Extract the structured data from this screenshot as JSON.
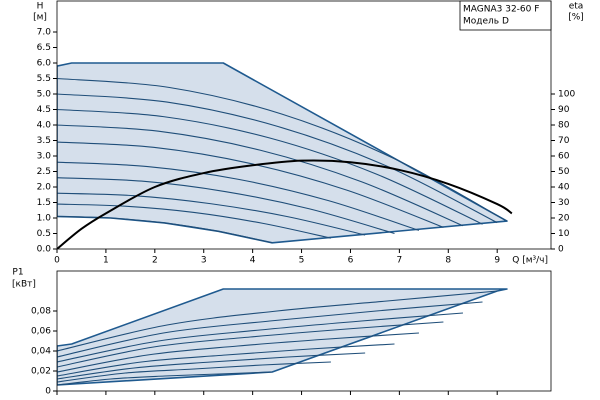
{
  "chart_data": [
    {
      "type": "line",
      "title": "MAGNA3 32-60 F",
      "subtitle": "Модель D",
      "ylabel": "H",
      "yunit": "[м]",
      "y2label": "eta",
      "y2unit": "[%]",
      "xlabel": "Q [м³/ч]",
      "xlim": [
        0,
        10.1
      ],
      "xticks": [
        0,
        1,
        2,
        3,
        4,
        5,
        6,
        7,
        8,
        9
      ],
      "ylim": [
        0,
        8
      ],
      "yticks": [
        {
          "value": 0,
          "label": "0.0"
        },
        0.5,
        {
          "value": 1,
          "label": "1.0"
        },
        1.5,
        {
          "value": 2,
          "label": "2.0"
        },
        2.5,
        {
          "value": 3,
          "label": "3.0"
        },
        3.5,
        {
          "value": 4,
          "label": "4.0"
        },
        4.5,
        {
          "value": 5,
          "label": "5.0"
        },
        5.5,
        {
          "value": 6,
          "label": "6.0"
        },
        6.5,
        {
          "value": 7,
          "label": "7.0"
        }
      ],
      "y2lim": [
        0,
        160
      ],
      "y2ticks": [
        0,
        10,
        20,
        30,
        40,
        50,
        60,
        70,
        80,
        90,
        100
      ],
      "area": {
        "color": "#d5dfeb",
        "edge": "#1f5a8f",
        "x": [
          0,
          0.3,
          3.4,
          9.2,
          4.4,
          3.3,
          2.2,
          1.1,
          0
        ],
        "values": [
          5.9,
          6.0,
          6.0,
          0.9,
          0.2,
          0.57,
          0.84,
          1.0,
          1.05
        ]
      },
      "series": [
        {
          "color": "#1f4e79",
          "x": [
            0,
            2.3,
            4.6,
            6.9,
            9.2
          ],
          "values": [
            5.5,
            5.21,
            4.35,
            2.91,
            0.9
          ]
        },
        {
          "color": "#1f4e79",
          "x": [
            0,
            2.25,
            4.5,
            6.75,
            9.0
          ],
          "values": [
            5.0,
            4.74,
            3.96,
            2.67,
            0.85
          ]
        },
        {
          "color": "#1f4e79",
          "x": [
            0,
            2.175,
            4.35,
            6.525,
            8.7
          ],
          "values": [
            4.5,
            4.27,
            3.58,
            2.42,
            0.8
          ]
        },
        {
          "color": "#1f4e79",
          "x": [
            0,
            2.075,
            4.15,
            6.225,
            8.3
          ],
          "values": [
            4.0,
            3.8,
            3.19,
            2.17,
            0.75
          ]
        },
        {
          "color": "#1f4e79",
          "x": [
            0,
            1.975,
            3.95,
            5.925,
            7.9
          ],
          "values": [
            3.45,
            3.28,
            2.76,
            1.9,
            0.7
          ]
        },
        {
          "color": "#1f4e79",
          "x": [
            0,
            1.85,
            3.7,
            5.55,
            7.4
          ],
          "values": [
            2.8,
            2.66,
            2.25,
            1.56,
            0.6
          ]
        },
        {
          "color": "#1f4e79",
          "x": [
            0,
            1.725,
            3.45,
            5.175,
            6.9
          ],
          "values": [
            2.3,
            2.19,
            1.85,
            1.29,
            0.5
          ]
        },
        {
          "color": "#1f4e79",
          "x": [
            0,
            1.575,
            3.15,
            4.725,
            6.3
          ],
          "values": [
            1.8,
            1.72,
            1.46,
            1.04,
            0.45
          ]
        },
        {
          "color": "#1f4e79",
          "x": [
            0,
            1.4,
            2.8,
            4.2,
            5.6
          ],
          "values": [
            1.45,
            1.38,
            1.18,
            0.83,
            0.35
          ]
        },
        {
          "color": "#1f4e79",
          "x": [
            0,
            1.1,
            2.2,
            3.3,
            4.4
          ],
          "values": [
            1.05,
            1.0,
            0.84,
            0.57,
            0.2
          ]
        },
        {
          "color": "#000000",
          "axis": "y2",
          "x": [
            0,
            0.5,
            1,
            2,
            3,
            4,
            5,
            6,
            7,
            8,
            9,
            9.3
          ],
          "values": [
            0,
            13,
            23,
            40,
            49,
            54,
            57,
            56,
            51,
            42,
            29,
            23
          ]
        }
      ]
    },
    {
      "type": "line",
      "ylabel": "P1",
      "yunit": "[кВт]",
      "xlim": [
        0,
        10.1
      ],
      "xticks": [
        0,
        1,
        2,
        3,
        4,
        5,
        6,
        7,
        8,
        9
      ],
      "ylim": [
        0,
        0.12
      ],
      "yticks": [
        0,
        {
          "value": 0.02,
          "label": "0,02"
        },
        {
          "value": 0.04,
          "label": "0,04"
        },
        {
          "value": 0.06,
          "label": "0,06"
        },
        {
          "value": 0.08,
          "label": "0,08"
        }
      ],
      "area": {
        "color": "#d5dfeb",
        "edge": "#1f5a8f",
        "x": [
          0,
          0.3,
          3.4,
          9.2,
          9.0,
          4.4,
          0
        ],
        "values": [
          0.045,
          0.047,
          0.102,
          0.102,
          0.1,
          0.019,
          0.006
        ]
      },
      "series": [
        {
          "color": "#1f4e79",
          "x": [
            0,
            2.25,
            4.5,
            6.75,
            9
          ],
          "values": [
            0.04,
            0.066,
            0.08,
            0.09,
            0.1
          ]
        },
        {
          "color": "#1f4e79",
          "x": [
            0,
            2.175,
            4.35,
            6.525,
            8.7
          ],
          "values": [
            0.034,
            0.058,
            0.07,
            0.08,
            0.089
          ]
        },
        {
          "color": "#1f4e79",
          "x": [
            0,
            2.075,
            4.15,
            6.225,
            8.3
          ],
          "values": [
            0.029,
            0.05,
            0.061,
            0.07,
            0.078
          ]
        },
        {
          "color": "#1f4e79",
          "x": [
            0,
            1.975,
            3.95,
            5.925,
            7.9
          ],
          "values": [
            0.024,
            0.044,
            0.054,
            0.062,
            0.069
          ]
        },
        {
          "color": "#1f4e79",
          "x": [
            0,
            1.85,
            3.7,
            5.55,
            7.4
          ],
          "values": [
            0.019,
            0.036,
            0.045,
            0.052,
            0.058
          ]
        },
        {
          "color": "#1f4e79",
          "x": [
            0,
            1.725,
            3.45,
            5.175,
            6.9
          ],
          "values": [
            0.015,
            0.029,
            0.036,
            0.042,
            0.047
          ]
        },
        {
          "color": "#1f4e79",
          "x": [
            0,
            1.575,
            3.15,
            4.725,
            6.3
          ],
          "values": [
            0.012,
            0.023,
            0.029,
            0.034,
            0.038
          ]
        },
        {
          "color": "#1f4e79",
          "x": [
            0,
            1.4,
            2.8,
            4.2,
            5.6
          ],
          "values": [
            0.009,
            0.018,
            0.022,
            0.026,
            0.029
          ]
        },
        {
          "color": "#1f4e79",
          "x": [
            0,
            1.1,
            2.2,
            3.3,
            4.4
          ],
          "values": [
            0.006,
            0.012,
            0.015,
            0.017,
            0.019
          ]
        }
      ]
    }
  ]
}
